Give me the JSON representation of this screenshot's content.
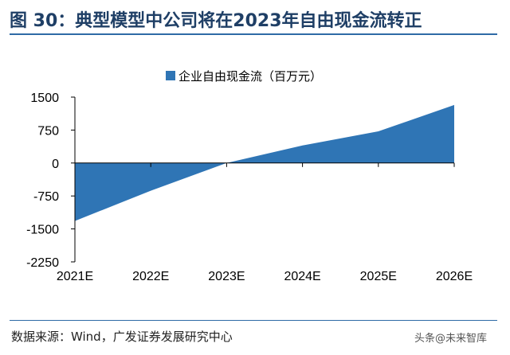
{
  "figure": {
    "title": "图 30：典型模型中公司将在2023年自由现金流转正",
    "source": "数据来源：Wind，广发证券发展研究中心",
    "watermark": "头条@未来智库"
  },
  "colors": {
    "series_fill": "#2f75b5",
    "axis": "#000000",
    "title_text": "#1f3f66",
    "rule": "#2e6aa6"
  },
  "chart_data": {
    "type": "area",
    "x": [
      "2021E",
      "2022E",
      "2023E",
      "2024E",
      "2025E",
      "2026E"
    ],
    "series": [
      {
        "name": "企业自由现金流（百万元）",
        "values": [
          -1320,
          -630,
          0,
          400,
          720,
          1320
        ]
      }
    ],
    "ylim": [
      -2250,
      1500
    ],
    "yticks": [
      1500,
      750,
      0,
      -750,
      -1500,
      -2250
    ],
    "ytick_labels": [
      "1500",
      "750",
      "0",
      "-750",
      "-1500",
      "-2250"
    ],
    "legend_position": "top-left",
    "grid": false
  }
}
